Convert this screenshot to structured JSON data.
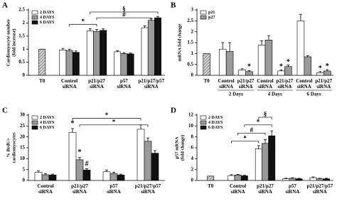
{
  "chart_data": [
    {
      "type": "bar",
      "label": "A",
      "ylabel": [
        "Cardiomyocyte number",
        "(fold increase)"
      ],
      "categories": [
        "T0",
        "Control siRNA",
        "p21/p27 siRNA",
        "p57 siRNA",
        "p21/p27/p57 siRNA"
      ],
      "series": [
        {
          "name": "2 DAYS",
          "color": "#ffffff",
          "values": [
            1,
            0.97,
            1.7,
            0.9,
            1.82
          ],
          "errors": [
            0,
            0.06,
            0.08,
            0.04,
            0.07
          ]
        },
        {
          "name": "4 DAYS",
          "color": "#9a9a9a",
          "values": [
            null,
            0.95,
            1.68,
            0.83,
            2.1
          ],
          "errors": [
            null,
            0.05,
            0.07,
            0.03,
            0.06
          ]
        },
        {
          "name": "6 DAYS",
          "color": "#111111",
          "values": [
            null,
            0.88,
            1.72,
            0.82,
            2.2
          ],
          "errors": [
            null,
            0.05,
            0.06,
            0.03,
            0.05
          ]
        }
      ],
      "ylim": [
        0,
        2.5
      ],
      "yticks": [
        0,
        0.5,
        1,
        1.5,
        2,
        2.5
      ],
      "legend": "upper left",
      "annotations": [
        "*",
        "§",
        "#"
      ]
    },
    {
      "type": "bar",
      "label": "B",
      "ylabel": [
        "mRNA fold change"
      ],
      "categories": [
        "T0",
        "Control siRNA",
        "p21/p27 siRNA",
        "Control siRNA",
        "p21/p27 siRNA",
        "Control siRNA",
        "p21/p27 siRNA"
      ],
      "group_labels": [
        "2 Days",
        "4 Days",
        "6 Days"
      ],
      "series": [
        {
          "name": "p21",
          "color": "#ffffff",
          "values": [
            1,
            1.2,
            0.25,
            1.38,
            0.2,
            2.5,
            0.12
          ],
          "errors": [
            0,
            0.3,
            0.05,
            0.2,
            0.05,
            0.3,
            0.05
          ]
        },
        {
          "name": "p27",
          "color": "#9a9a9a",
          "values": [
            null,
            1.1,
            0.17,
            1.62,
            0.4,
            0.85,
            0.2
          ],
          "errors": [
            null,
            0.4,
            0.04,
            0.2,
            0.07,
            0.05,
            0.06
          ]
        }
      ],
      "ylim": [
        0,
        3
      ],
      "yticks": [
        0,
        0.5,
        1,
        1.5,
        2,
        2.5,
        3
      ],
      "legend": "upper left",
      "annotations": [
        "*",
        "*",
        "*",
        "*",
        "*"
      ]
    },
    {
      "type": "bar",
      "label": "C",
      "ylabel": [
        "% BrdU+",
        "cardiomyocytes"
      ],
      "categories": [
        "Control siRNA",
        "p21/p27 siRNA",
        "p57 siRNA",
        "p21/p27/p57 siRNA"
      ],
      "series": [
        {
          "name": "2 DAYS",
          "color": "#ffffff",
          "values": [
            3.8,
            22,
            4,
            23.5
          ],
          "errors": [
            0.6,
            1.8,
            0.8,
            2
          ]
        },
        {
          "name": "4 DAYS",
          "color": "#9a9a9a",
          "values": [
            2.6,
            9.5,
            3.2,
            18
          ],
          "errors": [
            0.5,
            1,
            0.6,
            1.5
          ]
        },
        {
          "name": "6 DAYS",
          "color": "#111111",
          "values": [
            2.5,
            4.8,
            2.5,
            12.5
          ],
          "errors": [
            0.4,
            0.6,
            0.4,
            1.2
          ]
        }
      ],
      "ylim": [
        0,
        30
      ],
      "yticks": [
        0,
        5,
        10,
        15,
        20,
        25,
        30
      ],
      "legend": "upper left",
      "annotations": [
        "*",
        "*",
        "#",
        "*",
        "*"
      ]
    },
    {
      "type": "bar",
      "label": "D",
      "ylabel": [
        "p57 mRNA",
        "(fold change)"
      ],
      "categories": [
        "T0",
        "Control siRNA",
        "p21/p27 siRNA",
        "p57 siRNA",
        "p21/p27/p57 siRNA"
      ],
      "series": [
        {
          "name": "2 DAYS",
          "color": "#ffffff",
          "values": [
            0.8,
            0.9,
            5.8,
            0.3,
            0.5
          ],
          "errors": [
            0,
            0.15,
            0.6,
            0.1,
            0.15
          ]
        },
        {
          "name": "4 DAYS",
          "color": "#9a9a9a",
          "values": [
            null,
            1,
            6.8,
            0.4,
            0.3
          ],
          "errors": [
            null,
            0.1,
            0.7,
            0.1,
            0.1
          ]
        },
        {
          "name": "6 DAYS",
          "color": "#111111",
          "values": [
            null,
            0.85,
            8.2,
            0.3,
            0.3
          ],
          "errors": [
            null,
            0.1,
            0.9,
            0.1,
            0.1
          ]
        }
      ],
      "ylim": [
        0,
        12
      ],
      "yticks": [
        0,
        2,
        4,
        6,
        8,
        10,
        12
      ],
      "legend": "upper left",
      "annotations": [
        "*",
        "#",
        "*",
        "§"
      ]
    }
  ]
}
